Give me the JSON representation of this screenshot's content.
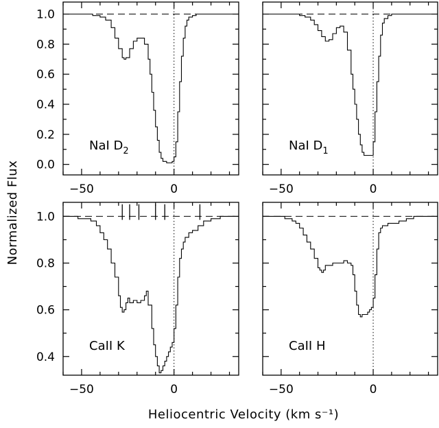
{
  "figure": {
    "ylabel": "Normalized Flux",
    "xlabel": "Heliocentric Velocity (km s⁻¹)"
  },
  "chart_data": [
    {
      "type": "line",
      "label": {
        "base": "NaI D",
        "sub": "2"
      },
      "xlim": [
        -60,
        35
      ],
      "ylim": [
        -0.07,
        1.08
      ],
      "yticks": [
        0.0,
        0.2,
        0.4,
        0.6,
        0.8,
        1.0
      ],
      "ytick_labels": [
        "0.0",
        "0.2",
        "0.4",
        "0.6",
        "0.8",
        "1.0"
      ],
      "xticks": [
        -50,
        0
      ],
      "xtick_labels": [
        "−50",
        "0"
      ],
      "continuum": 1.0,
      "zero_velocity": 0,
      "series": [
        {
          "x": [
            -60,
            -56,
            -52,
            -48,
            -44,
            -40,
            -37,
            -34,
            -32,
            -30,
            -28,
            -27,
            -26,
            -24,
            -22,
            -20,
            -18,
            -16,
            -14,
            -13,
            -12,
            -11,
            -10,
            -9,
            -8,
            -7,
            -6,
            -5,
            -4,
            -3,
            -2,
            -1,
            0,
            1,
            2,
            3,
            4,
            5,
            6,
            7,
            8,
            10,
            12,
            15,
            20,
            25,
            30,
            35
          ],
          "y": [
            1.0,
            1.0,
            1.0,
            1.0,
            0.99,
            0.98,
            0.96,
            0.91,
            0.84,
            0.77,
            0.71,
            0.7,
            0.71,
            0.77,
            0.82,
            0.84,
            0.84,
            0.8,
            0.7,
            0.6,
            0.48,
            0.36,
            0.25,
            0.16,
            0.08,
            0.04,
            0.02,
            0.02,
            0.01,
            0.01,
            0.01,
            0.02,
            0.05,
            0.15,
            0.35,
            0.55,
            0.72,
            0.84,
            0.92,
            0.96,
            0.98,
            0.99,
            1.0,
            1.0,
            1.0,
            1.0,
            1.0,
            1.0
          ]
        }
      ]
    },
    {
      "type": "line",
      "label": {
        "base": "NaI D",
        "sub": "1"
      },
      "xlim": [
        -60,
        35
      ],
      "ylim": [
        -0.07,
        1.08
      ],
      "yticks": [
        0.0,
        0.2,
        0.4,
        0.6,
        0.8,
        1.0
      ],
      "ytick_labels": [
        "0.0",
        "0.2",
        "0.4",
        "0.6",
        "0.8",
        "1.0"
      ],
      "xticks": [
        -50,
        0
      ],
      "xtick_labels": [
        "−50",
        "0"
      ],
      "continuum": 1.0,
      "zero_velocity": 0,
      "series": [
        {
          "x": [
            -60,
            -55,
            -50,
            -45,
            -40,
            -37,
            -34,
            -32,
            -30,
            -28,
            -26,
            -24,
            -22,
            -20,
            -18,
            -16,
            -14,
            -12,
            -11,
            -10,
            -9,
            -8,
            -7,
            -6,
            -5,
            -4,
            -3,
            -2,
            -1,
            0,
            1,
            2,
            3,
            4,
            5,
            6,
            8,
            10,
            15,
            20,
            25,
            30,
            35
          ],
          "y": [
            1.0,
            1.0,
            1.0,
            1.0,
            0.99,
            0.98,
            0.96,
            0.93,
            0.89,
            0.85,
            0.82,
            0.83,
            0.87,
            0.91,
            0.92,
            0.88,
            0.76,
            0.6,
            0.5,
            0.4,
            0.3,
            0.2,
            0.13,
            0.08,
            0.06,
            0.06,
            0.06,
            0.06,
            0.06,
            0.15,
            0.35,
            0.55,
            0.72,
            0.86,
            0.94,
            0.97,
            0.99,
            1.0,
            1.0,
            1.0,
            1.0,
            1.0,
            1.0
          ]
        }
      ]
    },
    {
      "type": "line",
      "label": {
        "base": "CaII K",
        "sub": ""
      },
      "xlim": [
        -60,
        35
      ],
      "ylim": [
        0.32,
        1.06
      ],
      "yticks": [
        0.4,
        0.6,
        0.8,
        1.0
      ],
      "ytick_labels": [
        "0.4",
        "0.6",
        "0.8",
        "1.0"
      ],
      "xticks": [
        -50,
        0
      ],
      "xtick_labels": [
        "−50",
        "0"
      ],
      "continuum": 1.0,
      "zero_velocity": 0,
      "components": [
        -28,
        -24,
        -19,
        -10,
        -5,
        14
      ],
      "series": [
        {
          "x": [
            -60,
            -56,
            -52,
            -48,
            -45,
            -42,
            -40,
            -38,
            -36,
            -34,
            -32,
            -30,
            -29,
            -28,
            -27,
            -26,
            -25,
            -24,
            -22,
            -20,
            -18,
            -16,
            -15,
            -14,
            -12,
            -11,
            -10,
            -9,
            -8,
            -7,
            -6,
            -5,
            -4,
            -3,
            -2,
            -1,
            0,
            1,
            2,
            3,
            4,
            5,
            6,
            8,
            10,
            13,
            16,
            20,
            25,
            30,
            35
          ],
          "y": [
            1.0,
            1.0,
            0.99,
            0.99,
            0.98,
            0.96,
            0.93,
            0.9,
            0.86,
            0.8,
            0.74,
            0.66,
            0.61,
            0.59,
            0.6,
            0.63,
            0.65,
            0.63,
            0.64,
            0.63,
            0.64,
            0.66,
            0.68,
            0.62,
            0.52,
            0.45,
            0.4,
            0.36,
            0.33,
            0.34,
            0.36,
            0.38,
            0.4,
            0.42,
            0.44,
            0.46,
            0.52,
            0.62,
            0.74,
            0.82,
            0.86,
            0.89,
            0.91,
            0.93,
            0.94,
            0.96,
            0.98,
            0.99,
            1.0,
            1.0,
            1.0
          ]
        }
      ]
    },
    {
      "type": "line",
      "label": {
        "base": "CaII H",
        "sub": ""
      },
      "xlim": [
        -60,
        35
      ],
      "ylim": [
        0.32,
        1.06
      ],
      "yticks": [
        0.4,
        0.6,
        0.8,
        1.0
      ],
      "ytick_labels": [
        "0.4",
        "0.6",
        "0.8",
        "1.0"
      ],
      "xticks": [
        -50,
        0
      ],
      "xtick_labels": [
        "−50",
        "0"
      ],
      "continuum": 1.0,
      "zero_velocity": 0,
      "series": [
        {
          "x": [
            -60,
            -56,
            -52,
            -48,
            -44,
            -42,
            -40,
            -38,
            -36,
            -34,
            -32,
            -30,
            -29,
            -28,
            -27,
            -26,
            -24,
            -22,
            -20,
            -18,
            -16,
            -14,
            -12,
            -11,
            -10,
            -9,
            -8,
            -7,
            -6,
            -5,
            -4,
            -3,
            -2,
            -1,
            0,
            1,
            2,
            3,
            4,
            5,
            6,
            8,
            10,
            14,
            18,
            22,
            26,
            30,
            35
          ],
          "y": [
            1.0,
            1.0,
            1.0,
            0.99,
            0.98,
            0.97,
            0.95,
            0.92,
            0.89,
            0.86,
            0.82,
            0.78,
            0.77,
            0.76,
            0.77,
            0.79,
            0.79,
            0.8,
            0.8,
            0.8,
            0.81,
            0.8,
            0.79,
            0.75,
            0.68,
            0.62,
            0.58,
            0.57,
            0.58,
            0.58,
            0.58,
            0.59,
            0.6,
            0.61,
            0.65,
            0.75,
            0.86,
            0.93,
            0.95,
            0.96,
            0.96,
            0.97,
            0.97,
            0.98,
            0.99,
            1.0,
            1.0,
            1.0,
            1.0
          ]
        }
      ]
    }
  ]
}
